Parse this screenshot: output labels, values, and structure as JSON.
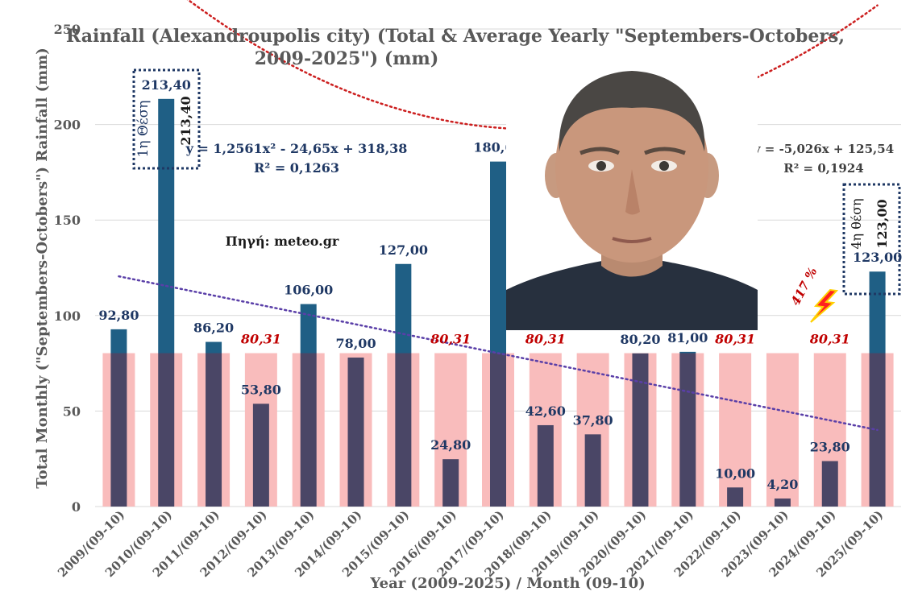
{
  "chart_data": {
    "type": "bar",
    "title": "Rainfall (Alexandroupolis city) (Total & Average Yearly \"Septembers-Octobers,",
    "title_line2": "2009-2025\") (mm)",
    "ylabel": "Total Monthly (\"Septembers-Octobers\") Rainfall (mm)",
    "xlabel": "Year (2009-2025) / Month (09-10)",
    "ylim": [
      0,
      250
    ],
    "yticks": [
      "0",
      "50",
      "100",
      "150",
      "200",
      "250"
    ],
    "grid": true,
    "categories": [
      "2009/(09-10)",
      "2010/(09-10)",
      "2011/(09-10)",
      "2012/(09-10)",
      "2013/(09-10)",
      "2014/(09-10)",
      "2015/(09-10)",
      "2016/(09-10)",
      "2017/(09-10)",
      "2018/(09-10)",
      "2019/(09-10)",
      "2020/(09-10)",
      "2021/(09-10)",
      "2022/(09-10)",
      "2023/(09-10)",
      "2024/(09-10)",
      "2025/(09-10)"
    ],
    "series": [
      {
        "values": [
          92.8,
          213.4,
          86.2,
          53.8,
          106.0,
          78.0,
          127.0,
          24.8,
          180.6,
          42.6,
          37.8,
          80.2,
          81.0,
          10.0,
          4.2,
          23.8,
          123.0
        ],
        "labels": [
          "92,80",
          "213,40",
          "86,20",
          "53,80",
          "106,00",
          "78,00",
          "127,00",
          "24,80",
          "180,60",
          "42,60",
          "37,80",
          "80,20",
          "81,00",
          "10,00",
          "4,20",
          "23,80",
          "123,00"
        ],
        "color": "#1f5f85"
      },
      {
        "values": [
          80.31,
          80.31,
          80.31,
          80.31,
          80.31,
          80.31,
          80.31,
          80.31,
          80.31,
          80.31,
          80.31,
          80.31,
          80.31,
          80.31,
          80.31,
          80.31,
          80.31
        ],
        "average_label": "80,31",
        "average_label_indices": [
          3,
          7,
          9,
          13,
          15
        ],
        "color": "#f9bcbc"
      }
    ],
    "trendlines": [
      {
        "type": "polynomial",
        "equation": "y = 1,2561x² - 24,65x + 318,38",
        "r2": "R² = 0,1263",
        "a": 1.2561,
        "b": -24.65,
        "c": 318.38,
        "color": "#cc1f1f"
      },
      {
        "type": "linear",
        "equation": "y = -5,026x + 125,54",
        "r2": "R² = 0,1924",
        "slope": -5.026,
        "intercept": 125.54,
        "color": "#5a3fa8"
      }
    ],
    "annotations": {
      "source": "Πηγή: meteo.gr",
      "rank1_label": "1η Θέση",
      "rank1_value": "213,40",
      "rank4_label": "4η θέση",
      "rank4_value": "123,00",
      "percent": "417 %"
    },
    "colors": {
      "bar_dark": "#1f5f85",
      "bar_overlap": "#4a4666",
      "average": "#f9bcbc",
      "text_dark": "#1f3864",
      "label_red": "#c00000",
      "axis_text": "#595959"
    }
  }
}
